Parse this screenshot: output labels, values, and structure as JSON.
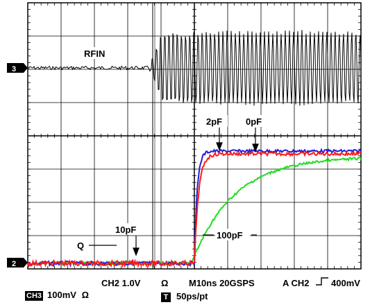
{
  "traces": {
    "rfin_label": "RFIN",
    "q_label": "Q",
    "cap_labels": [
      "2pF",
      "0pF",
      "10pF",
      "100pF"
    ]
  },
  "channel_markers": {
    "ch3": "3",
    "ch2": "2"
  },
  "status_bar": {
    "ch2_scale": "CH2 1.0V",
    "ch2_ohm": "Ω",
    "timebase": "M10ns 20GSPS",
    "trigger": "A CH2",
    "trigger_level": "400mV",
    "ch3_badge": "CH3",
    "ch3_scale": "100mV",
    "ch3_ohm": "Ω",
    "t_badge": "T",
    "resolution": "50ps/pt"
  },
  "colors": {
    "rfin": "#000000",
    "q_blue": "#1f1fd8",
    "q_red": "#ff1a1a",
    "q_green": "#22dd22",
    "grid": "#000000"
  }
}
